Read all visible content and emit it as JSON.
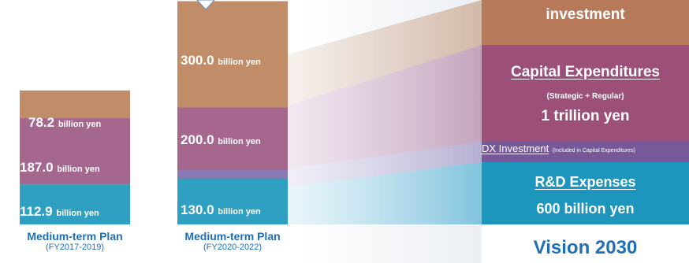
{
  "chart_data": {
    "type": "bar",
    "stacked": true,
    "unit": "billion yen",
    "categories": [
      {
        "name": "Medium-term Plan",
        "period": "(FY2017-2019)"
      },
      {
        "name": "Medium-term Plan",
        "period": "(FY2020-2022)"
      }
    ],
    "series": [
      {
        "values": [
          112.9,
          130.0
        ],
        "color": "#2f9fc2"
      },
      {
        "values": [
          187.0,
          200.0
        ],
        "color": "#a5678e"
      },
      {
        "values": [
          78.2,
          300.0
        ],
        "color": "#c08d68"
      }
    ],
    "vision": {
      "title": "Vision 2030",
      "blocks": [
        {
          "text": "investment",
          "color": "#b67a5a"
        },
        {
          "title": "Capital Expenditures",
          "subtitle": "(Strategic + Regular)",
          "value": "1 trillion yen",
          "color": "#9b4f79"
        },
        {
          "main": "DX Investment",
          "note": "(Included in Capital Expenditures)",
          "color": "#77599a"
        },
        {
          "title": "R&D Expenses",
          "value": "600 billion yen",
          "color": "#1d95bd"
        }
      ]
    }
  }
}
